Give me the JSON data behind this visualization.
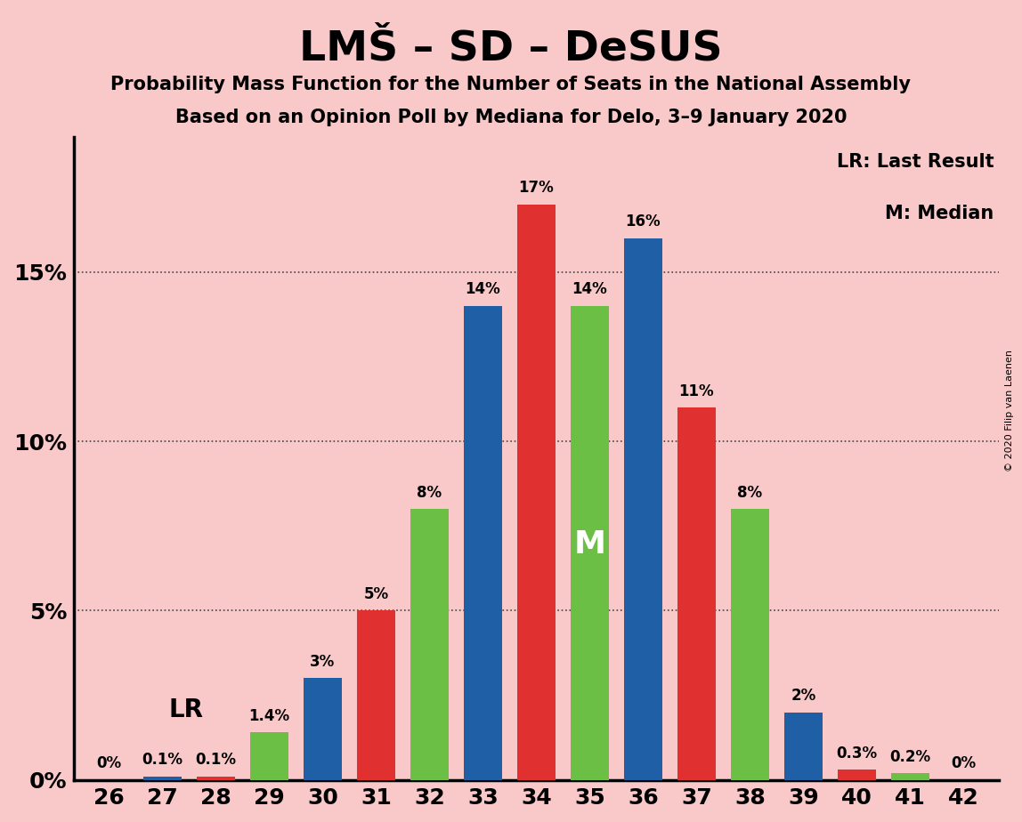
{
  "title": "LMŠ – SD – DeSUS",
  "subtitle1": "Probability Mass Function for the Number of Seats in the National Assembly",
  "subtitle2": "Based on an Opinion Poll by Mediana for Delo, 3–9 January 2020",
  "copyright": "© 2020 Filip van Laenen",
  "legend_lr": "LR: Last Result",
  "legend_m": "M: Median",
  "seats": [
    26,
    27,
    28,
    29,
    30,
    31,
    32,
    33,
    34,
    35,
    36,
    37,
    38,
    39,
    40,
    41,
    42
  ],
  "bar_values": [
    0.0,
    0.1,
    0.1,
    1.4,
    3.0,
    5.0,
    8.0,
    14.0,
    17.0,
    14.0,
    16.0,
    11.0,
    8.0,
    2.0,
    0.3,
    0.2,
    0.0
  ],
  "bar_colors": [
    "#f9d0d0",
    "#1f5fa6",
    "#e03030",
    "#6bbf44",
    "#1f5fa6",
    "#e03030",
    "#6bbf44",
    "#1f5fa6",
    "#e03030",
    "#6bbf44",
    "#1f5fa6",
    "#e03030",
    "#6bbf44",
    "#1f5fa6",
    "#e03030",
    "#6bbf44",
    "#f9d0d0"
  ],
  "label_overrides": {
    "26": "0%",
    "27": "0.1%",
    "28": "0.1%",
    "29": "1.4%",
    "30": "3%",
    "31": "5%",
    "32": "8%",
    "33": "14%",
    "34": "17%",
    "35": "14%",
    "36": "16%",
    "37": "11%",
    "38": "8%",
    "39": "2%",
    "40": "0.3%",
    "41": "0.2%",
    "42": "0%"
  },
  "blue_color": "#1f5fa6",
  "red_color": "#e03030",
  "green_color": "#6bbf44",
  "background_color": "#f9c8c8",
  "ylim_max": 19.0,
  "yticks": [
    0,
    5,
    10,
    15
  ],
  "ytick_labels": [
    "0%",
    "5%",
    "10%",
    "15%"
  ],
  "lr_seat_idx": 2,
  "median_seat_idx": 9,
  "label_fontsize": 12,
  "title_fontsize": 34,
  "subtitle_fontsize": 15,
  "tick_fontsize": 18,
  "legend_fontsize": 15,
  "bar_width": 0.72
}
